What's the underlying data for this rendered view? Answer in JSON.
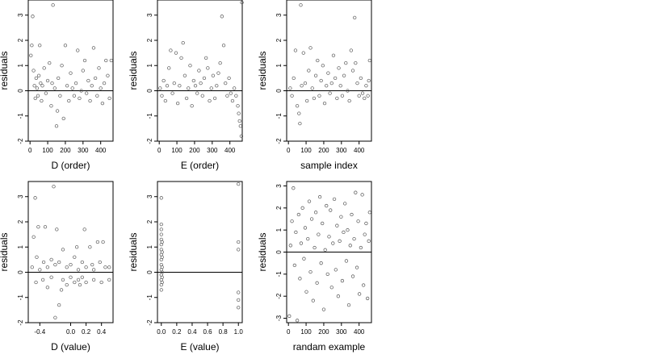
{
  "chart_data": [
    {
      "type": "scatter",
      "xlabel": "D (order)",
      "ylabel": "residuals",
      "xlim": [
        -10,
        470
      ],
      "ylim": [
        -2,
        3.6
      ],
      "xticks": [
        0,
        100,
        200,
        300,
        400
      ],
      "yticks": [
        -2,
        -1,
        0,
        1,
        2,
        3
      ],
      "hline": 0,
      "points": [
        [
          5,
          1.4
        ],
        [
          10,
          1.8
        ],
        [
          15,
          2.95
        ],
        [
          20,
          0.8
        ],
        [
          25,
          0.2
        ],
        [
          30,
          -0.3
        ],
        [
          35,
          0.5
        ],
        [
          40,
          0.1
        ],
        [
          45,
          -0.2
        ],
        [
          50,
          0.6
        ],
        [
          55,
          1.8
        ],
        [
          60,
          0.3
        ],
        [
          65,
          -0.4
        ],
        [
          70,
          0.2
        ],
        [
          80,
          0.9
        ],
        [
          90,
          -0.1
        ],
        [
          100,
          0.4
        ],
        [
          110,
          1.1
        ],
        [
          120,
          -0.6
        ],
        [
          125,
          0.3
        ],
        [
          130,
          3.4
        ],
        [
          140,
          0.1
        ],
        [
          150,
          -1.4
        ],
        [
          155,
          -0.8
        ],
        [
          160,
          0.5
        ],
        [
          170,
          -0.2
        ],
        [
          180,
          1.0
        ],
        [
          190,
          -1.1
        ],
        [
          200,
          1.8
        ],
        [
          210,
          0.2
        ],
        [
          220,
          -0.4
        ],
        [
          230,
          0.7
        ],
        [
          240,
          0.1
        ],
        [
          250,
          -0.2
        ],
        [
          260,
          0.3
        ],
        [
          270,
          1.6
        ],
        [
          280,
          -0.3
        ],
        [
          290,
          0.0
        ],
        [
          300,
          0.8
        ],
        [
          310,
          1.2
        ],
        [
          320,
          -0.1
        ],
        [
          330,
          0.4
        ],
        [
          340,
          -0.4
        ],
        [
          350,
          0.2
        ],
        [
          360,
          1.7
        ],
        [
          370,
          0.5
        ],
        [
          380,
          -0.2
        ],
        [
          390,
          0.9
        ],
        [
          400,
          0.1
        ],
        [
          410,
          -0.5
        ],
        [
          420,
          0.3
        ],
        [
          430,
          1.2
        ],
        [
          440,
          0.6
        ],
        [
          450,
          -0.3
        ],
        [
          460,
          1.2
        ]
      ]
    },
    {
      "type": "scatter",
      "xlabel": "E (order)",
      "ylabel": "residuals",
      "xlim": [
        -10,
        470
      ],
      "ylim": [
        -2,
        3.6
      ],
      "xticks": [
        0,
        100,
        200,
        300,
        400
      ],
      "yticks": [
        -2,
        -1,
        0,
        1,
        2,
        3
      ],
      "hline": 0,
      "points": [
        [
          5,
          0.1
        ],
        [
          15,
          -0.2
        ],
        [
          25,
          0.4
        ],
        [
          35,
          -0.4
        ],
        [
          45,
          0.2
        ],
        [
          55,
          0.9
        ],
        [
          65,
          1.6
        ],
        [
          75,
          -0.1
        ],
        [
          85,
          0.3
        ],
        [
          95,
          1.5
        ],
        [
          105,
          -0.5
        ],
        [
          115,
          0.2
        ],
        [
          125,
          1.3
        ],
        [
          135,
          1.9
        ],
        [
          145,
          0.6
        ],
        [
          155,
          -0.3
        ],
        [
          165,
          0.1
        ],
        [
          175,
          1.0
        ],
        [
          185,
          -0.6
        ],
        [
          195,
          0.4
        ],
        [
          205,
          0.2
        ],
        [
          215,
          -0.1
        ],
        [
          225,
          0.8
        ],
        [
          235,
          0.3
        ],
        [
          245,
          -0.2
        ],
        [
          255,
          0.5
        ],
        [
          265,
          1.3
        ],
        [
          275,
          0.9
        ],
        [
          285,
          -0.4
        ],
        [
          295,
          0.1
        ],
        [
          305,
          0.6
        ],
        [
          315,
          -0.3
        ],
        [
          325,
          0.2
        ],
        [
          335,
          0.7
        ],
        [
          345,
          1.1
        ],
        [
          355,
          2.95
        ],
        [
          365,
          1.8
        ],
        [
          375,
          0.3
        ],
        [
          385,
          -0.2
        ],
        [
          395,
          0.5
        ],
        [
          405,
          -0.1
        ],
        [
          415,
          -0.4
        ],
        [
          425,
          0.1
        ],
        [
          435,
          -0.2
        ],
        [
          445,
          -0.6
        ],
        [
          450,
          -0.9
        ],
        [
          455,
          -1.2
        ],
        [
          460,
          -1.4
        ],
        [
          465,
          -1.8
        ],
        [
          468,
          3.5
        ]
      ]
    },
    {
      "type": "scatter",
      "xlabel": "sample index",
      "ylabel": "residuals",
      "xlim": [
        -10,
        470
      ],
      "ylim": [
        -2,
        3.6
      ],
      "xticks": [
        0,
        100,
        200,
        300,
        400
      ],
      "yticks": [
        -2,
        -1,
        0,
        1,
        2,
        3
      ],
      "hline": 0,
      "points": [
        [
          10,
          0.1
        ],
        [
          20,
          -0.2
        ],
        [
          30,
          0.5
        ],
        [
          40,
          1.6
        ],
        [
          50,
          -0.6
        ],
        [
          60,
          -0.9
        ],
        [
          65,
          -1.3
        ],
        [
          70,
          3.4
        ],
        [
          75,
          0.2
        ],
        [
          85,
          1.5
        ],
        [
          95,
          0.3
        ],
        [
          105,
          -0.4
        ],
        [
          115,
          0.8
        ],
        [
          125,
          1.7
        ],
        [
          135,
          0.1
        ],
        [
          145,
          -0.3
        ],
        [
          155,
          0.6
        ],
        [
          165,
          1.2
        ],
        [
          175,
          -0.2
        ],
        [
          185,
          0.4
        ],
        [
          195,
          1.0
        ],
        [
          205,
          -0.5
        ],
        [
          215,
          0.2
        ],
        [
          225,
          0.7
        ],
        [
          235,
          -0.1
        ],
        [
          245,
          0.3
        ],
        [
          255,
          1.4
        ],
        [
          265,
          0.5
        ],
        [
          275,
          -0.3
        ],
        [
          285,
          0.9
        ],
        [
          295,
          0.2
        ],
        [
          305,
          -0.2
        ],
        [
          315,
          0.6
        ],
        [
          325,
          1.1
        ],
        [
          335,
          0.0
        ],
        [
          345,
          -0.4
        ],
        [
          355,
          1.6
        ],
        [
          365,
          0.8
        ],
        [
          375,
          2.9
        ],
        [
          380,
          1.1
        ],
        [
          390,
          0.3
        ],
        [
          400,
          -0.2
        ],
        [
          410,
          0.5
        ],
        [
          420,
          -0.1
        ],
        [
          430,
          -0.3
        ],
        [
          440,
          0.2
        ],
        [
          450,
          -0.2
        ],
        [
          455,
          0.4
        ],
        [
          460,
          1.2
        ]
      ]
    },
    {
      "type": "scatter",
      "xlabel": "D (value)",
      "ylabel": "residuals",
      "xlim": [
        -0.55,
        0.55
      ],
      "ylim": [
        -2,
        3.6
      ],
      "xticks": [
        -0.4,
        0.0,
        0.2,
        0.4
      ],
      "xticklabels": [
        "-0.4",
        "0.0",
        "0.2",
        "0.4"
      ],
      "yticks": [
        -2,
        -1,
        0,
        1,
        2,
        3
      ],
      "hline": 0,
      "points": [
        [
          -0.5,
          0.2
        ],
        [
          -0.48,
          1.4
        ],
        [
          -0.46,
          2.95
        ],
        [
          -0.45,
          -0.4
        ],
        [
          -0.44,
          0.6
        ],
        [
          -0.42,
          1.8
        ],
        [
          -0.4,
          0.1
        ],
        [
          -0.36,
          -0.3
        ],
        [
          -0.35,
          0.4
        ],
        [
          -0.33,
          1.8
        ],
        [
          -0.3,
          0.2
        ],
        [
          -0.3,
          -0.6
        ],
        [
          -0.25,
          0.5
        ],
        [
          -0.25,
          -0.2
        ],
        [
          -0.22,
          3.4
        ],
        [
          -0.2,
          0.3
        ],
        [
          -0.2,
          -1.8
        ],
        [
          -0.18,
          1.7
        ],
        [
          -0.15,
          0.4
        ],
        [
          -0.15,
          -1.3
        ],
        [
          -0.12,
          -0.7
        ],
        [
          -0.1,
          0.9
        ],
        [
          -0.1,
          -0.3
        ],
        [
          -0.05,
          0.2
        ],
        [
          -0.05,
          -0.5
        ],
        [
          0.0,
          0.3
        ],
        [
          0.0,
          -0.2
        ],
        [
          0.05,
          0.6
        ],
        [
          0.05,
          -0.4
        ],
        [
          0.08,
          1.0
        ],
        [
          0.1,
          0.1
        ],
        [
          0.1,
          -0.3
        ],
        [
          0.12,
          -0.5
        ],
        [
          0.15,
          0.4
        ],
        [
          0.15,
          -0.2
        ],
        [
          0.18,
          1.7
        ],
        [
          0.2,
          0.2
        ],
        [
          0.2,
          -0.4
        ],
        [
          0.25,
          1.0
        ],
        [
          0.28,
          0.3
        ],
        [
          0.3,
          -0.3
        ],
        [
          0.3,
          0.1
        ],
        [
          0.35,
          1.2
        ],
        [
          0.38,
          0.4
        ],
        [
          0.4,
          -0.4
        ],
        [
          0.42,
          1.2
        ],
        [
          0.45,
          0.2
        ],
        [
          0.5,
          -0.3
        ],
        [
          0.5,
          0.2
        ]
      ]
    },
    {
      "type": "scatter",
      "xlabel": "E (value)",
      "ylabel": "residuals",
      "xlim": [
        -0.05,
        1.05
      ],
      "ylim": [
        -2,
        3.6
      ],
      "xticks": [
        0.0,
        0.2,
        0.4,
        0.6,
        0.8,
        1.0
      ],
      "xticklabels": [
        "0.0",
        "0.2",
        "0.4",
        "0.6",
        "0.8",
        "1.0"
      ],
      "yticks": [
        -2,
        -1,
        0,
        1,
        2,
        3
      ],
      "hline": 0,
      "points": [
        [
          0.0,
          2.95
        ],
        [
          0.0,
          1.9
        ],
        [
          0.0,
          1.7
        ],
        [
          0.0,
          1.5
        ],
        [
          0.0,
          1.3
        ],
        [
          0.0,
          1.1
        ],
        [
          0.0,
          0.9
        ],
        [
          0.0,
          0.7
        ],
        [
          0.0,
          0.5
        ],
        [
          0.0,
          0.3
        ],
        [
          0.0,
          0.1
        ],
        [
          0.0,
          -0.1
        ],
        [
          0.0,
          -0.3
        ],
        [
          0.0,
          -0.5
        ],
        [
          0.0,
          -0.7
        ],
        [
          0.01,
          0.6
        ],
        [
          0.01,
          0.2
        ],
        [
          0.01,
          -0.2
        ],
        [
          0.01,
          1.2
        ],
        [
          0.01,
          0.8
        ],
        [
          0.01,
          -0.4
        ],
        [
          0.01,
          0.0
        ],
        [
          1.0,
          3.5
        ],
        [
          1.0,
          1.2
        ],
        [
          1.0,
          0.9
        ],
        [
          1.0,
          -0.8
        ],
        [
          1.0,
          -1.1
        ],
        [
          1.0,
          -1.4
        ]
      ]
    },
    {
      "type": "scatter",
      "xlabel": "randam example",
      "ylabel": "residuals",
      "xlim": [
        -10,
        470
      ],
      "ylim": [
        -3.2,
        3.2
      ],
      "xticks": [
        0,
        100,
        200,
        300,
        400
      ],
      "yticks": [
        -3,
        -2,
        -1,
        0,
        1,
        2,
        3
      ],
      "hline": 0,
      "points": [
        [
          5,
          -2.9
        ],
        [
          12,
          0.3
        ],
        [
          20,
          1.4
        ],
        [
          28,
          2.9
        ],
        [
          35,
          -0.6
        ],
        [
          42,
          0.9
        ],
        [
          50,
          -3.1
        ],
        [
          58,
          1.7
        ],
        [
          65,
          -1.2
        ],
        [
          72,
          0.4
        ],
        [
          80,
          2.0
        ],
        [
          88,
          -0.3
        ],
        [
          95,
          1.1
        ],
        [
          102,
          -1.8
        ],
        [
          110,
          0.6
        ],
        [
          118,
          2.3
        ],
        [
          125,
          -0.9
        ],
        [
          132,
          1.5
        ],
        [
          140,
          -2.2
        ],
        [
          148,
          0.2
        ],
        [
          155,
          1.8
        ],
        [
          162,
          -1.4
        ],
        [
          170,
          0.8
        ],
        [
          178,
          2.5
        ],
        [
          185,
          -0.5
        ],
        [
          192,
          1.3
        ],
        [
          200,
          -2.6
        ],
        [
          208,
          0.1
        ],
        [
          215,
          2.1
        ],
        [
          222,
          -1.0
        ],
        [
          230,
          0.7
        ],
        [
          238,
          1.9
        ],
        [
          245,
          -1.6
        ],
        [
          252,
          0.4
        ],
        [
          260,
          2.4
        ],
        [
          268,
          -0.8
        ],
        [
          275,
          1.2
        ],
        [
          282,
          -2.0
        ],
        [
          290,
          0.5
        ],
        [
          298,
          1.6
        ],
        [
          305,
          -1.3
        ],
        [
          312,
          0.9
        ],
        [
          320,
          2.2
        ],
        [
          328,
          -0.4
        ],
        [
          335,
          1.0
        ],
        [
          342,
          -2.4
        ],
        [
          350,
          0.3
        ],
        [
          358,
          1.7
        ],
        [
          365,
          -1.1
        ],
        [
          372,
          0.6
        ],
        [
          380,
          2.7
        ],
        [
          388,
          -0.7
        ],
        [
          395,
          1.4
        ],
        [
          402,
          -1.9
        ],
        [
          410,
          0.2
        ],
        [
          418,
          2.6
        ],
        [
          425,
          -1.5
        ],
        [
          432,
          0.8
        ],
        [
          440,
          1.3
        ],
        [
          448,
          -2.1
        ],
        [
          455,
          0.5
        ],
        [
          460,
          1.8
        ]
      ]
    }
  ]
}
